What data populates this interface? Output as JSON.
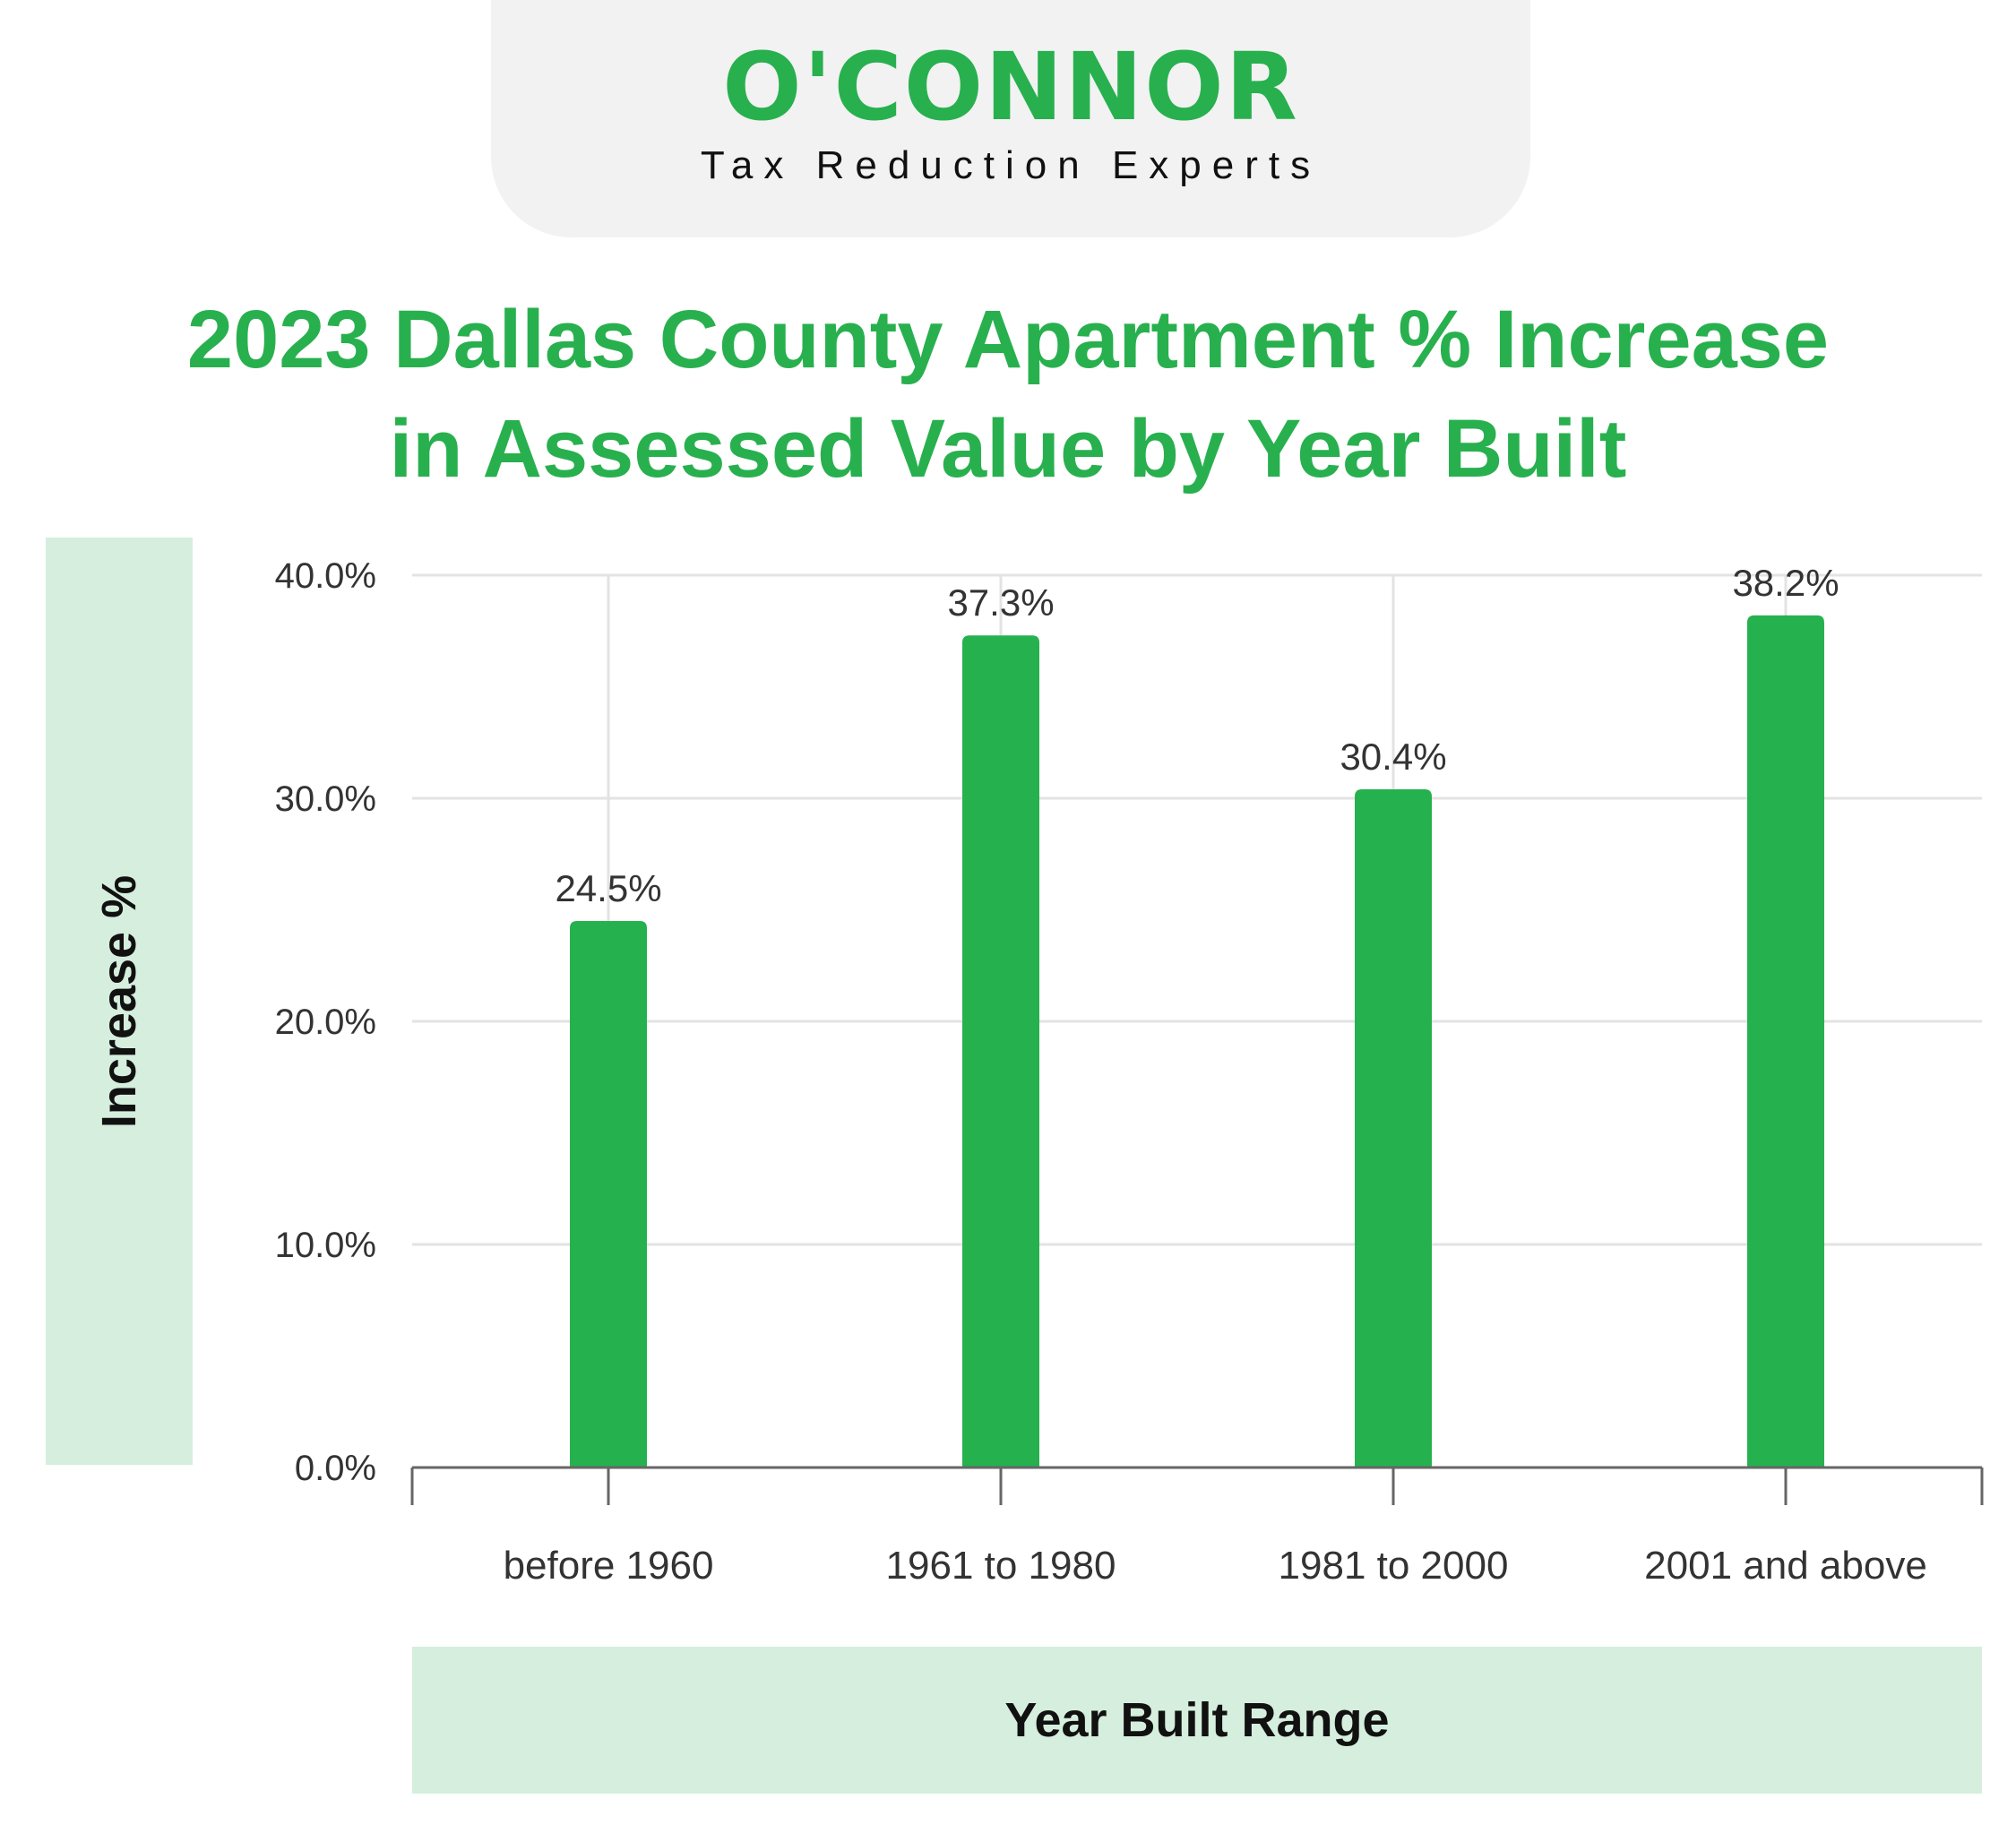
{
  "header": {
    "logo_text": "O'CONNOR",
    "tagline": "Tax Reduction Experts"
  },
  "colors": {
    "brand_green": "#28b04e",
    "panel_green": "#d5eedd",
    "bar_green": "#26b14f"
  },
  "chart_data": {
    "type": "bar",
    "title_line1": "2023 Dallas County Apartment % Increase",
    "title_line2": "in Assessed Value by Year Built",
    "xlabel": "Year Built Range",
    "ylabel": "Increase %",
    "categories": [
      "before 1960",
      "1961 to 1980",
      "1981 to 2000",
      "2001 and above"
    ],
    "values": [
      24.5,
      37.3,
      30.4,
      38.2
    ],
    "data_labels": [
      "24.5%",
      "37.3%",
      "30.4%",
      "38.2%"
    ],
    "ylim": [
      0,
      40
    ],
    "yticks": [
      0,
      10,
      20,
      30,
      40
    ],
    "ytick_labels": [
      "0.0%",
      "10.0%",
      "20.0%",
      "30.0%",
      "40.0%"
    ],
    "grid": true,
    "legend": "none"
  }
}
